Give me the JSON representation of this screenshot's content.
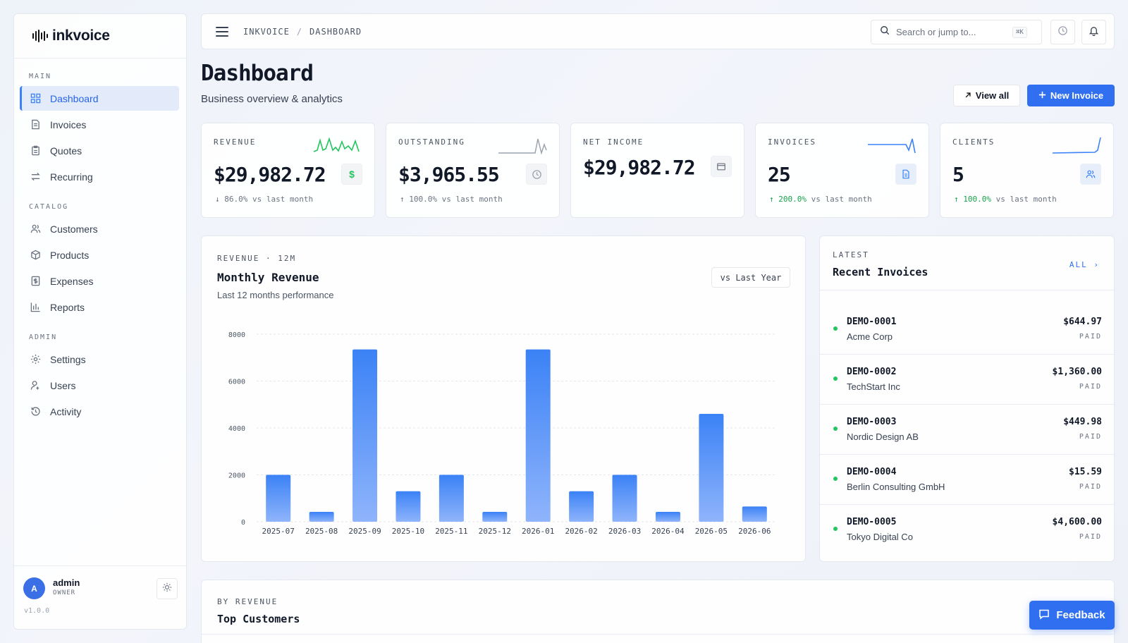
{
  "app": {
    "name": "inkvoice",
    "version": "v1.0.0"
  },
  "sidebar": {
    "sections": [
      {
        "label": "MAIN",
        "items": [
          {
            "label": "Dashboard",
            "icon": "dashboard-icon",
            "active": true
          },
          {
            "label": "Invoices",
            "icon": "invoice-icon"
          },
          {
            "label": "Quotes",
            "icon": "quote-icon"
          },
          {
            "label": "Recurring",
            "icon": "recurring-icon"
          }
        ]
      },
      {
        "label": "CATALOG",
        "items": [
          {
            "label": "Customers",
            "icon": "customers-icon"
          },
          {
            "label": "Products",
            "icon": "box-icon"
          },
          {
            "label": "Expenses",
            "icon": "receipt-icon"
          },
          {
            "label": "Reports",
            "icon": "bar-chart-icon"
          }
        ]
      },
      {
        "label": "ADMIN",
        "items": [
          {
            "label": "Settings",
            "icon": "gear-icon"
          },
          {
            "label": "Users",
            "icon": "user-icon"
          },
          {
            "label": "Activity",
            "icon": "history-icon"
          }
        ]
      }
    ],
    "user": {
      "initial": "A",
      "name": "admin",
      "role": "OWNER"
    }
  },
  "topbar": {
    "breadcrumb": [
      "INKVOICE",
      "DASHBOARD"
    ],
    "search": {
      "placeholder": "Search or jump to...",
      "shortcut": "⌘K"
    }
  },
  "header": {
    "title": "Dashboard",
    "subtitle": "Business overview & analytics",
    "view_all": "View all",
    "new_invoice": "New Invoice"
  },
  "kpis": [
    {
      "label": "REVENUE",
      "value": "$29,982.72",
      "change": "86.0%",
      "direction": "down",
      "suffix": "vs last month",
      "icon": "dollar-icon"
    },
    {
      "label": "OUTSTANDING",
      "value": "$3,965.55",
      "change": "100.0%",
      "direction": "up",
      "suffix": "vs last month",
      "icon": "clock-icon"
    },
    {
      "label": "NET INCOME",
      "value": "$29,982.72",
      "icon": "wallet-icon"
    },
    {
      "label": "INVOICES",
      "value": "25",
      "change": "200.0%",
      "direction": "up",
      "suffix": "vs last month",
      "icon": "document-icon"
    },
    {
      "label": "CLIENTS",
      "value": "5",
      "change": "100.0%",
      "direction": "up",
      "suffix": "vs last month",
      "icon": "users-icon"
    }
  ],
  "revenue_card": {
    "eyebrow": "REVENUE · 12M",
    "title": "Monthly Revenue",
    "subtitle": "Last 12 months performance",
    "compare_button": "vs Last Year"
  },
  "chart_data": {
    "type": "bar",
    "categories": [
      "2025-07",
      "2025-08",
      "2025-09",
      "2025-10",
      "2025-11",
      "2025-12",
      "2026-01",
      "2026-02",
      "2026-03",
      "2026-04",
      "2026-05",
      "2026-06"
    ],
    "values": [
      2000,
      420,
      7350,
      1300,
      2000,
      420,
      7350,
      1300,
      2000,
      420,
      4600,
      650
    ],
    "yticks": [
      0,
      2000,
      4000,
      6000,
      8000
    ],
    "ylim": [
      0,
      8000
    ],
    "grid": true,
    "colors": {
      "bar_top": "#3b82f6",
      "bar_bottom": "#8fb4fb"
    }
  },
  "invoices_card": {
    "eyebrow": "LATEST",
    "title": "Recent Invoices",
    "all_link": "ALL",
    "rows": [
      {
        "number": "DEMO-0001",
        "customer": "Acme Corp",
        "amount": "$644.97",
        "status": "PAID"
      },
      {
        "number": "DEMO-0002",
        "customer": "TechStart Inc",
        "amount": "$1,360.00",
        "status": "PAID"
      },
      {
        "number": "DEMO-0003",
        "customer": "Nordic Design AB",
        "amount": "$449.98",
        "status": "PAID"
      },
      {
        "number": "DEMO-0004",
        "customer": "Berlin Consulting GmbH",
        "amount": "$15.59",
        "status": "PAID"
      },
      {
        "number": "DEMO-0005",
        "customer": "Tokyo Digital Co",
        "amount": "$4,600.00",
        "status": "PAID"
      }
    ]
  },
  "top_customers": {
    "eyebrow": "BY REVENUE",
    "title": "Top Customers"
  },
  "feedback": {
    "label": "Feedback"
  },
  "colors": {
    "accent": "#2f6ff0",
    "positive": "#16a34a",
    "status_dot": "#22c55e"
  }
}
